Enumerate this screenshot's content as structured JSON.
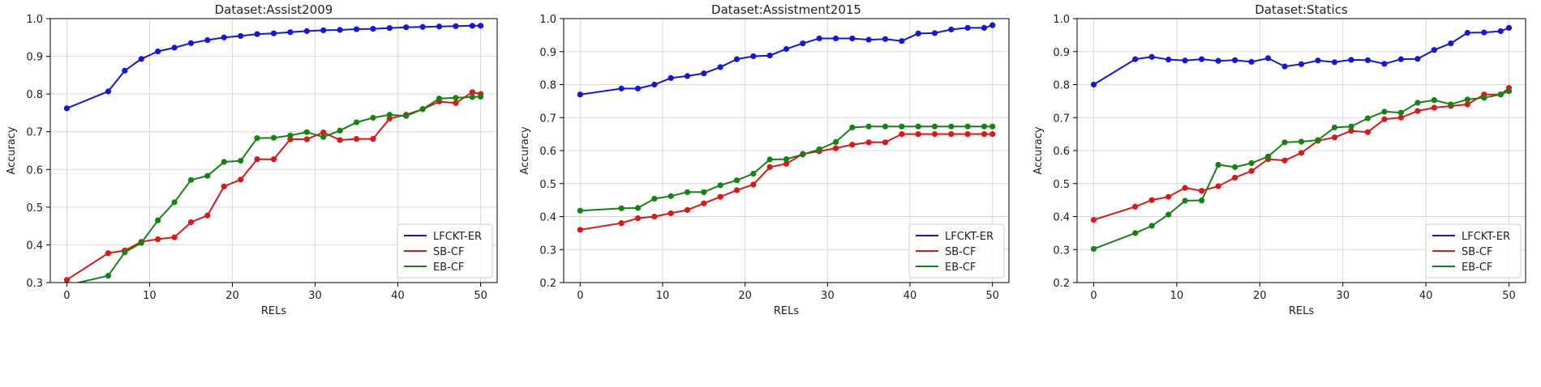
{
  "colors": {
    "LFCKT-ER": "#1515e0",
    "SB-CF": "#e01515",
    "EB-CF": "#138413",
    "grid": "#d9d9d9",
    "axis": "#000000"
  },
  "chart_data": [
    {
      "type": "line",
      "title": "Dataset:Assist2009",
      "xlabel": "RELs",
      "ylabel": "Accuracy",
      "xlim": [
        -2,
        52
      ],
      "ylim": [
        0.3,
        1.0
      ],
      "xticks": [
        "0",
        "10",
        "20",
        "30",
        "40",
        "50"
      ],
      "yticks": [
        "0.3",
        "0.4",
        "0.5",
        "0.6",
        "0.7",
        "0.8",
        "0.9",
        "1.0"
      ],
      "grid": true,
      "legend_position": "lower-right",
      "x": [
        0,
        5,
        7,
        9,
        11,
        13,
        15,
        17,
        19,
        21,
        23,
        25,
        27,
        29,
        31,
        33,
        35,
        37,
        39,
        41,
        43,
        45,
        47,
        49,
        50
      ],
      "series": [
        {
          "name": "LFCKT-ER",
          "values": [
            0.762,
            0.807,
            0.862,
            0.893,
            0.913,
            0.923,
            0.935,
            0.943,
            0.95,
            0.954,
            0.959,
            0.961,
            0.964,
            0.967,
            0.969,
            0.97,
            0.972,
            0.973,
            0.975,
            0.977,
            0.978,
            0.979,
            0.98,
            0.981,
            0.981
          ]
        },
        {
          "name": "SB-CF",
          "values": [
            0.307,
            0.378,
            0.385,
            0.408,
            0.415,
            0.42,
            0.46,
            0.478,
            0.555,
            0.573,
            0.627,
            0.627,
            0.68,
            0.68,
            0.698,
            0.678,
            0.681,
            0.681,
            0.735,
            0.745,
            0.76,
            0.78,
            0.776,
            0.805,
            0.8
          ]
        },
        {
          "name": "EB-CF",
          "values": [
            0.293,
            0.318,
            0.38,
            0.405,
            0.465,
            0.513,
            0.572,
            0.583,
            0.62,
            0.623,
            0.683,
            0.684,
            0.69,
            0.699,
            0.686,
            0.703,
            0.725,
            0.737,
            0.745,
            0.742,
            0.76,
            0.788,
            0.79,
            0.792,
            0.793
          ]
        }
      ]
    },
    {
      "type": "line",
      "title": "Dataset:Assistment2015",
      "xlabel": "RELs",
      "ylabel": "Accuracy",
      "xlim": [
        -2,
        52
      ],
      "ylim": [
        0.2,
        1.0
      ],
      "xticks": [
        "0",
        "10",
        "20",
        "30",
        "40",
        "50"
      ],
      "yticks": [
        "0.2",
        "0.3",
        "0.4",
        "0.5",
        "0.6",
        "0.7",
        "0.8",
        "0.9",
        "1.0"
      ],
      "grid": true,
      "legend_position": "lower-right",
      "x": [
        0,
        5,
        7,
        9,
        11,
        13,
        15,
        17,
        19,
        21,
        23,
        25,
        27,
        29,
        31,
        33,
        35,
        37,
        39,
        41,
        43,
        45,
        47,
        49,
        50
      ],
      "series": [
        {
          "name": "LFCKT-ER",
          "values": [
            0.77,
            0.788,
            0.788,
            0.8,
            0.82,
            0.826,
            0.834,
            0.853,
            0.877,
            0.886,
            0.888,
            0.908,
            0.925,
            0.94,
            0.94,
            0.94,
            0.936,
            0.938,
            0.932,
            0.955,
            0.956,
            0.967,
            0.972,
            0.972,
            0.98
          ]
        },
        {
          "name": "SB-CF",
          "values": [
            0.36,
            0.38,
            0.395,
            0.4,
            0.41,
            0.42,
            0.44,
            0.46,
            0.48,
            0.497,
            0.55,
            0.56,
            0.59,
            0.598,
            0.607,
            0.618,
            0.625,
            0.625,
            0.65,
            0.65,
            0.65,
            0.65,
            0.65,
            0.65,
            0.65
          ]
        },
        {
          "name": "EB-CF",
          "values": [
            0.418,
            0.425,
            0.426,
            0.454,
            0.462,
            0.474,
            0.474,
            0.495,
            0.51,
            0.53,
            0.573,
            0.574,
            0.588,
            0.604,
            0.626,
            0.67,
            0.673,
            0.673,
            0.673,
            0.673,
            0.673,
            0.673,
            0.673,
            0.673,
            0.673
          ]
        }
      ]
    },
    {
      "type": "line",
      "title": "Dataset:Statics",
      "xlabel": "RELs",
      "ylabel": "Accuracy",
      "xlim": [
        -2,
        52
      ],
      "ylim": [
        0.2,
        1.0
      ],
      "xticks": [
        "0",
        "10",
        "20",
        "30",
        "40",
        "50"
      ],
      "yticks": [
        "0.2",
        "0.3",
        "0.4",
        "0.5",
        "0.6",
        "0.7",
        "0.8",
        "0.9",
        "1.0"
      ],
      "grid": true,
      "legend_position": "lower-right",
      "x": [
        0,
        5,
        7,
        9,
        11,
        13,
        15,
        17,
        19,
        21,
        23,
        25,
        27,
        29,
        31,
        33,
        35,
        37,
        39,
        41,
        43,
        45,
        47,
        49,
        50
      ],
      "series": [
        {
          "name": "LFCKT-ER",
          "values": [
            0.8,
            0.877,
            0.884,
            0.876,
            0.873,
            0.877,
            0.872,
            0.874,
            0.869,
            0.88,
            0.855,
            0.862,
            0.873,
            0.868,
            0.875,
            0.874,
            0.863,
            0.877,
            0.878,
            0.905,
            0.925,
            0.957,
            0.958,
            0.962,
            0.972
          ]
        },
        {
          "name": "SB-CF",
          "values": [
            0.39,
            0.43,
            0.45,
            0.46,
            0.487,
            0.478,
            0.492,
            0.518,
            0.538,
            0.574,
            0.57,
            0.593,
            0.63,
            0.64,
            0.66,
            0.656,
            0.695,
            0.7,
            0.72,
            0.73,
            0.735,
            0.74,
            0.77,
            0.77,
            0.79
          ]
        },
        {
          "name": "EB-CF",
          "values": [
            0.302,
            0.35,
            0.372,
            0.406,
            0.448,
            0.449,
            0.557,
            0.55,
            0.562,
            0.582,
            0.625,
            0.627,
            0.632,
            0.67,
            0.673,
            0.698,
            0.718,
            0.715,
            0.745,
            0.753,
            0.74,
            0.755,
            0.76,
            0.77,
            0.78
          ]
        }
      ]
    }
  ]
}
